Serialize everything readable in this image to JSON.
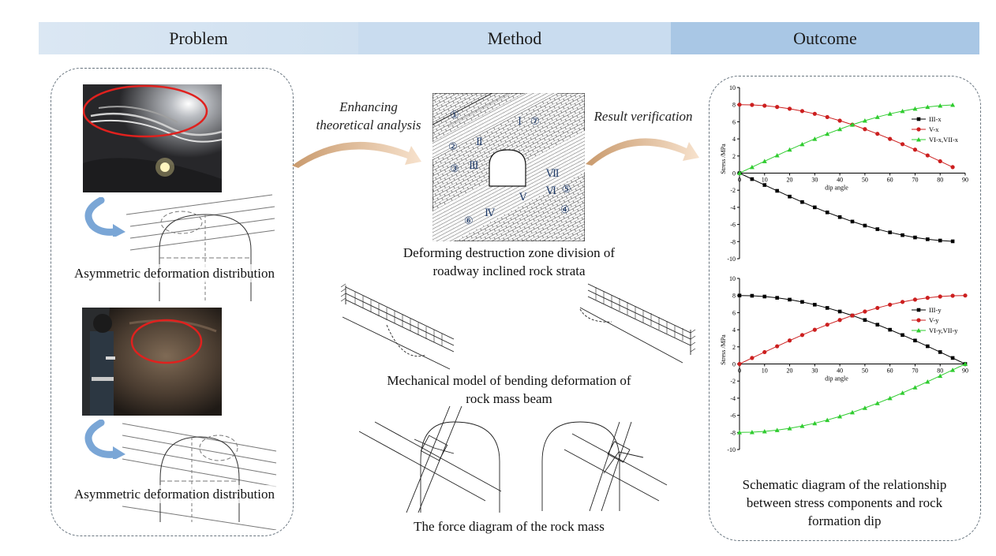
{
  "header": {
    "problem": "Problem",
    "method": "Method",
    "outcome": "Outcome"
  },
  "problem": {
    "caption_top": "Asymmetric deformation distribution",
    "caption_bottom": "Asymmetric deformation distribution"
  },
  "arrows": {
    "left_label_line1": "Enhancing",
    "left_label_line2": "theoretical analysis",
    "right_label": "Result verification"
  },
  "method": {
    "zone_caption_line1": "Deforming destruction zone division of",
    "zone_caption_line2": "roadway inclined rock strata",
    "zone_labels": [
      "①",
      "②",
      "③",
      "④",
      "⑤",
      "⑥",
      "⑦",
      "Ⅰ",
      "Ⅱ",
      "Ⅲ",
      "Ⅳ",
      "Ⅴ",
      "Ⅵ",
      "Ⅶ"
    ],
    "beam_caption_line1": "Mechanical model of bending deformation of",
    "beam_caption_line2": "rock mass beam",
    "force_caption": "The force diagram of the rock mass"
  },
  "outcome": {
    "caption_line1": "Schematic diagram of the relationship",
    "caption_line2": "between stress components and rock",
    "caption_line3": "formation dip"
  },
  "chart_data": [
    {
      "type": "line",
      "title": "",
      "xlabel": "dip angle",
      "ylabel": "Stress /MPa",
      "xlim": [
        0,
        90
      ],
      "ylim": [
        -10,
        10
      ],
      "x_ticks": [
        0,
        10,
        20,
        30,
        40,
        50,
        60,
        70,
        80,
        90
      ],
      "y_ticks": [
        10,
        8,
        6,
        4,
        2,
        0,
        -2,
        -4,
        -6,
        -8,
        -10
      ],
      "legend_position": "right",
      "x": [
        0,
        5,
        10,
        15,
        20,
        25,
        30,
        35,
        40,
        45,
        50,
        55,
        60,
        65,
        70,
        75,
        80,
        85
      ],
      "series": [
        {
          "name": "III-x",
          "color": "#000000",
          "marker": "square",
          "values": [
            0,
            -0.7,
            -1.39,
            -2.07,
            -2.74,
            -3.38,
            -4.0,
            -4.59,
            -5.14,
            -5.66,
            -6.13,
            -6.55,
            -6.93,
            -7.25,
            -7.52,
            -7.73,
            -7.88,
            -7.97
          ]
        },
        {
          "name": "V-x",
          "color": "#cc1f1f",
          "marker": "circle",
          "values": [
            8.0,
            7.97,
            7.88,
            7.73,
            7.52,
            7.25,
            6.93,
            6.55,
            6.13,
            5.66,
            5.14,
            4.59,
            4.0,
            3.38,
            2.74,
            2.07,
            1.39,
            0.7
          ]
        },
        {
          "name": "VI-x,VII-x",
          "color": "#2fcc2f",
          "marker": "triangle",
          "values": [
            0,
            0.7,
            1.39,
            2.07,
            2.74,
            3.38,
            4.0,
            4.59,
            5.14,
            5.66,
            6.13,
            6.55,
            6.93,
            7.25,
            7.52,
            7.73,
            7.88,
            7.97
          ]
        }
      ]
    },
    {
      "type": "line",
      "title": "",
      "xlabel": "dip angle",
      "ylabel": "Stress /MPa",
      "xlim": [
        0,
        90
      ],
      "ylim": [
        -10,
        10
      ],
      "x_ticks": [
        0,
        10,
        20,
        30,
        40,
        50,
        60,
        70,
        80,
        90
      ],
      "y_ticks": [
        10,
        8,
        6,
        4,
        2,
        0,
        -2,
        -4,
        -6,
        -8,
        -10
      ],
      "legend_position": "right",
      "x": [
        0,
        5,
        10,
        15,
        20,
        25,
        30,
        35,
        40,
        45,
        50,
        55,
        60,
        65,
        70,
        75,
        80,
        85,
        90
      ],
      "series": [
        {
          "name": "III-y",
          "color": "#000000",
          "marker": "square",
          "values": [
            8.0,
            7.97,
            7.88,
            7.73,
            7.52,
            7.25,
            6.93,
            6.55,
            6.13,
            5.66,
            5.14,
            4.59,
            4.0,
            3.38,
            2.74,
            2.07,
            1.39,
            0.7,
            0
          ]
        },
        {
          "name": "V-y",
          "color": "#cc1f1f",
          "marker": "circle",
          "values": [
            0,
            0.7,
            1.39,
            2.07,
            2.74,
            3.38,
            4.0,
            4.59,
            5.14,
            5.66,
            6.13,
            6.55,
            6.93,
            7.25,
            7.52,
            7.73,
            7.88,
            7.97,
            8.0
          ]
        },
        {
          "name": "VI-y,VII-y",
          "color": "#2fcc2f",
          "marker": "triangle",
          "values": [
            -8.0,
            -7.97,
            -7.88,
            -7.73,
            -7.52,
            -7.25,
            -6.93,
            -6.55,
            -6.13,
            -5.66,
            -5.14,
            -4.59,
            -4.0,
            -3.38,
            -2.74,
            -2.07,
            -1.39,
            -0.7,
            0
          ]
        }
      ]
    }
  ]
}
